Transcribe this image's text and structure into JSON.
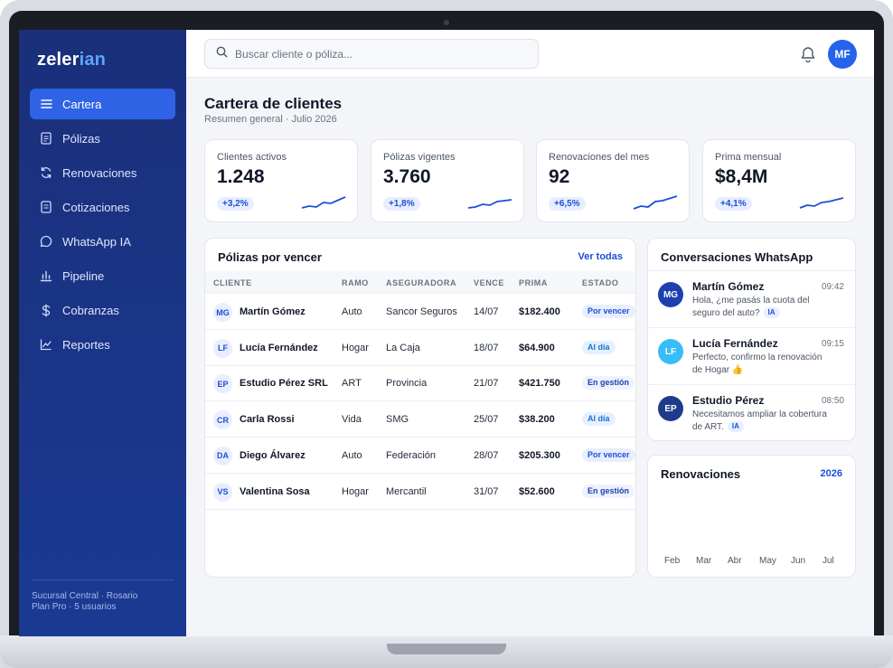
{
  "app": {
    "logo_main": "zeler",
    "logo_accent": "ian"
  },
  "sidebar": {
    "items": [
      {
        "label": "Cartera",
        "icon": "menu-icon"
      },
      {
        "label": "Pólizas",
        "icon": "document-icon"
      },
      {
        "label": "Renovaciones",
        "icon": "refresh-icon"
      },
      {
        "label": "Cotizaciones",
        "icon": "clipboard-icon"
      },
      {
        "label": "WhatsApp IA",
        "icon": "chat-icon"
      },
      {
        "label": "Pipeline",
        "icon": "bar-chart-icon"
      },
      {
        "label": "Cobranzas",
        "icon": "dollar-icon"
      },
      {
        "label": "Reportes",
        "icon": "line-chart-icon"
      }
    ],
    "footer_line1": "Sucursal Central · Rosario",
    "footer_line2": "Plan Pro · 5 usuarios"
  },
  "header": {
    "search_placeholder": "Buscar cliente o póliza...",
    "avatar": "MF"
  },
  "page": {
    "title": "Cartera de clientes",
    "subtitle": "Resumen general · Julio 2026"
  },
  "kpis": [
    {
      "label": "Clientes activos",
      "value": "1.248",
      "delta": "+3,2%"
    },
    {
      "label": "Pólizas vigentes",
      "value": "3.760",
      "delta": "+1,8%"
    },
    {
      "label": "Renovaciones del mes",
      "value": "92",
      "delta": "+6,5%"
    },
    {
      "label": "Prima mensual",
      "value": "$8,4M",
      "delta": "+4,1%"
    }
  ],
  "policies": {
    "title": "Pólizas por vencer",
    "link": "Ver todas",
    "headers": [
      "CLIENTE",
      "RAMO",
      "ASEGURADORA",
      "VENCE",
      "PRIMA",
      "ESTADO"
    ],
    "rows": [
      {
        "ini": "MG",
        "cliente": "Martín Gómez",
        "ramo": "Auto",
        "aseg": "Sancor Seguros",
        "vence": "14/07",
        "prima": "$182.400",
        "estado": "Por vencer"
      },
      {
        "ini": "LF",
        "cliente": "Lucía Fernández",
        "ramo": "Hogar",
        "aseg": "La Caja",
        "vence": "18/07",
        "prima": "$64.900",
        "estado": "Al día"
      },
      {
        "ini": "EP",
        "cliente": "Estudio Pérez SRL",
        "ramo": "ART",
        "aseg": "Provincia",
        "vence": "21/07",
        "prima": "$421.750",
        "estado": "En gestión"
      },
      {
        "ini": "CR",
        "cliente": "Carla Rossi",
        "ramo": "Vida",
        "aseg": "SMG",
        "vence": "25/07",
        "prima": "$38.200",
        "estado": "Al día"
      },
      {
        "ini": "DA",
        "cliente": "Diego Álvarez",
        "ramo": "Auto",
        "aseg": "Federación",
        "vence": "28/07",
        "prima": "$205.300",
        "estado": "Por vencer"
      },
      {
        "ini": "VS",
        "cliente": "Valentina Sosa",
        "ramo": "Hogar",
        "aseg": "Mercantil",
        "vence": "31/07",
        "prima": "$52.600",
        "estado": "En gestión"
      }
    ]
  },
  "whatsapp": {
    "title": "Conversaciones WhatsApp",
    "ia_label": "IA",
    "chats": [
      {
        "ini": "MG",
        "name": "Martín Gómez",
        "time": "09:42",
        "msg": "Hola, ¿me pasás la cuota del seguro del auto?",
        "color": "#1e40af"
      },
      {
        "ini": "LF",
        "name": "Lucía Fernández",
        "time": "09:15",
        "msg": "Perfecto, confirmo la renovación de Hogar 👍",
        "color": "#38bdf8"
      },
      {
        "ini": "EP",
        "name": "Estudio Pérez",
        "time": "08:50",
        "msg": "Necesitamos ampliar la cobertura de ART.",
        "color": "#1e3a8a"
      }
    ]
  },
  "renewals": {
    "title": "Renovaciones",
    "year": "2026",
    "months": [
      "Feb",
      "Mar",
      "Abr",
      "May",
      "Jun",
      "Jul"
    ]
  },
  "colors": {
    "accent": "#2563eb",
    "sidebar": "#1b2f7a"
  }
}
